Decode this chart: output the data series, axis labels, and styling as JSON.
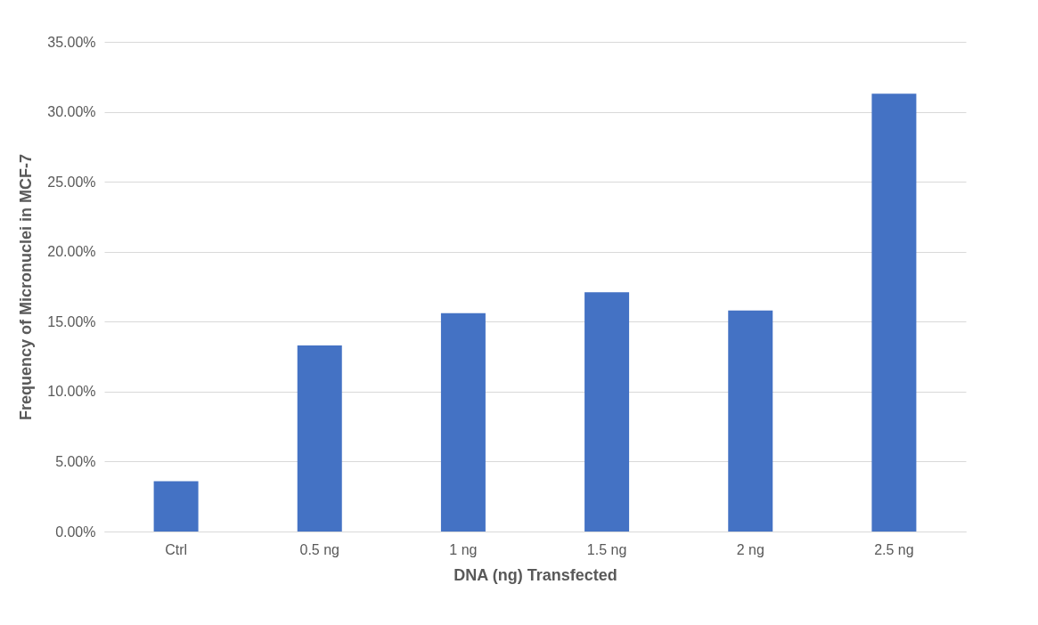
{
  "chart_data": {
    "type": "bar",
    "xlabel": "DNA (ng) Transfected",
    "ylabel": "Frequency of Micronuclei in MCF-7",
    "categories": [
      "Ctrl",
      "0.5 ng",
      "1 ng",
      "1.5 ng",
      "2 ng",
      "2.5 ng"
    ],
    "values": [
      3.6,
      13.3,
      15.6,
      17.1,
      15.8,
      31.3
    ],
    "color": "#4472c4",
    "ylim": [
      0,
      35
    ],
    "yticks": [
      {
        "value": 0,
        "label": "0.00%"
      },
      {
        "value": 5,
        "label": "5.00%"
      },
      {
        "value": 10,
        "label": "10.00%"
      },
      {
        "value": 15,
        "label": "15.00%"
      },
      {
        "value": 20,
        "label": "20.00%"
      },
      {
        "value": 25,
        "label": "25.00%"
      },
      {
        "value": 30,
        "label": "30.00%"
      },
      {
        "value": 35,
        "label": "35.00%"
      }
    ],
    "grid": "y"
  }
}
